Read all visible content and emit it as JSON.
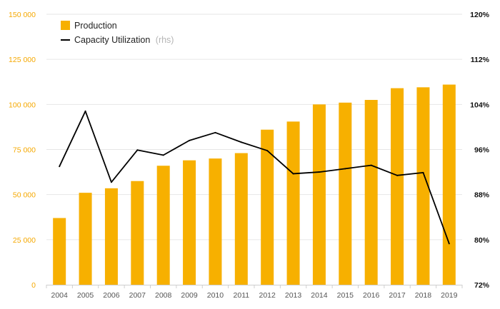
{
  "chart_data": {
    "type": "bar",
    "categories": [
      "2004",
      "2005",
      "2006",
      "2007",
      "2008",
      "2009",
      "2010",
      "2011",
      "2012",
      "2013",
      "2014",
      "2015",
      "2016",
      "2017",
      "2018",
      "2019"
    ],
    "series": [
      {
        "name": "Production",
        "type": "bar",
        "axis": "left",
        "color": "#f7b000",
        "values": [
          37000,
          51000,
          53500,
          57500,
          66000,
          69000,
          70000,
          73000,
          86000,
          90500,
          100000,
          101000,
          102500,
          109000,
          109500,
          111000
        ]
      },
      {
        "name": "Capacity Utilization",
        "type": "line",
        "axis": "right",
        "color": "#000000",
        "values": [
          93.0,
          102.8,
          90.2,
          95.9,
          95.0,
          97.6,
          99.0,
          97.3,
          95.8,
          91.7,
          92.0,
          92.6,
          93.2,
          91.4,
          91.9,
          79.3
        ]
      }
    ],
    "legend": [
      {
        "label": "Production",
        "suffix": ""
      },
      {
        "label": "Capacity Utilization",
        "suffix": "(rhs)"
      }
    ],
    "legend_position": "top-left",
    "y_left": {
      "ylim": [
        0,
        150000
      ],
      "ticks": [
        0,
        25000,
        50000,
        75000,
        100000,
        125000,
        150000
      ],
      "tick_labels": [
        "0",
        "25 000",
        "50 000",
        "75 000",
        "100 000",
        "125 000",
        "150 000"
      ],
      "tick_color": "#f5a800"
    },
    "y_right": {
      "ylim": [
        72,
        120
      ],
      "ticks": [
        72,
        80,
        88,
        96,
        104,
        112,
        120
      ],
      "tick_labels": [
        "72%",
        "80%",
        "88%",
        "96%",
        "104%",
        "112%",
        "120%"
      ],
      "tick_color": "#111111"
    },
    "grid": true
  }
}
